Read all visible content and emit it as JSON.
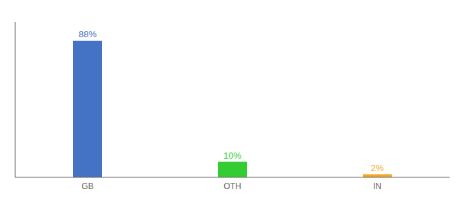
{
  "chart_data": {
    "type": "bar",
    "categories": [
      "GB",
      "OTH",
      "IN"
    ],
    "values": [
      88,
      10,
      2
    ],
    "value_labels": [
      "88%",
      "10%",
      "2%"
    ],
    "colors": [
      "#4472c4",
      "#33cc33",
      "#f5a623"
    ],
    "ylim": [
      0,
      100
    ],
    "tick_labels": "x"
  }
}
